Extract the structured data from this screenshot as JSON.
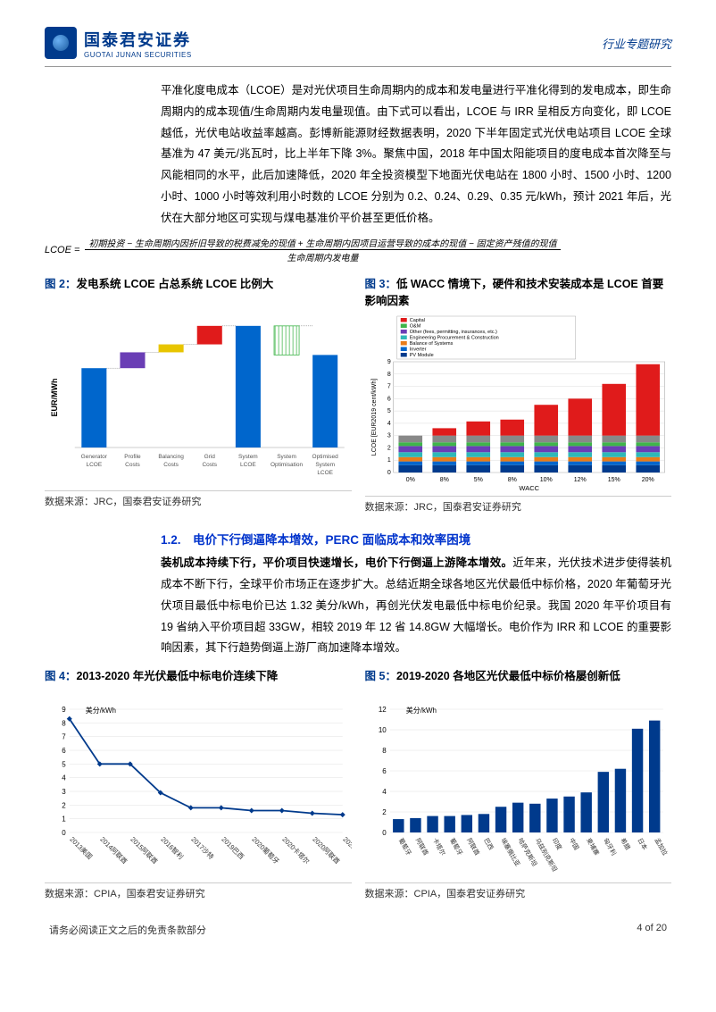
{
  "header": {
    "logo_cn": "国泰君安证券",
    "logo_en": "GUOTAI JUNAN SECURITIES",
    "doc_type": "行业专题研究"
  },
  "para1": "平准化度电成本（LCOE）是对光伏项目生命周期内的成本和发电量进行平准化得到的发电成本，即生命周期内的成本现值/生命周期内发电量现值。由下式可以看出，LCOE 与 IRR 呈相反方向变化，即 LCOE 越低，光伏电站收益率越高。彭博新能源财经数据表明，2020 下半年固定式光伏电站项目 LCOE 全球基准为 47 美元/兆瓦时，比上半年下降 3%。聚焦中国，2018 年中国太阳能项目的度电成本首次降至与风能相同的水平，此后加速降低，2020 年全投资模型下地面光伏电站在 1800 小时、1500 小时、1200 小时、1000 小时等效利用小时数的 LCOE 分别为 0.2、0.24、0.29、0.35 元/kWh，预计 2021 年后，光伏在大部分地区可实现与煤电基准价平价甚至更低价格。",
  "formula": {
    "lhs": "LCOE =",
    "num": "初期投资 − 生命周期内因折旧导致的税费减免的现值 + 生命周期内因项目运营导致的成本的现值 − 固定资产残值的现值",
    "den": "生命周期内发电量"
  },
  "fig2": {
    "prefix": "图 2：",
    "title": "发电系统 LCOE 占总系统 LCOE 比例大",
    "ylabel": "EUR/MWh",
    "categories": [
      "Generator LCOE",
      "Profile Costs",
      "Balancing Costs",
      "Grid Costs",
      "System LCOE",
      "System Optimisation",
      "Optimised System LCOE"
    ],
    "bars": [
      {
        "y0": 0,
        "y1": 60,
        "color": "#0066cc"
      },
      {
        "y0": 60,
        "y1": 72,
        "color": "#6a3eb5"
      },
      {
        "y0": 72,
        "y1": 78,
        "color": "#e8c500"
      },
      {
        "y0": 78,
        "y1": 92,
        "color": "#e01b1b"
      },
      {
        "y0": 0,
        "y1": 92,
        "color": "#0066cc"
      },
      {
        "y0": 70,
        "y1": 92,
        "color": "#3fb54a",
        "hatch": true
      },
      {
        "y0": 0,
        "y1": 70,
        "color": "#0066cc"
      }
    ],
    "ymax": 100,
    "source": "数据来源：JRC，国泰君安证券研究"
  },
  "fig3": {
    "prefix": "图 3：",
    "title": "低 WACC 情境下，硬件和技术安装成本是 LCOE 首要影响因素",
    "ylabel": "LCOE [EUR2019 cent/kWh]",
    "xlabel": "WACC",
    "categories": [
      "0%",
      "8%",
      "5%",
      "8%",
      "10%",
      "12%",
      "15%",
      "20%"
    ],
    "legend": [
      {
        "label": "Capital",
        "color": "#e01b1b"
      },
      {
        "label": "O&M",
        "color": "#3fb54a"
      },
      {
        "label": "Other (fees, permitting, insurances, etc.)",
        "color": "#6a3eb5"
      },
      {
        "label": "Engineering Procurement & Construction",
        "color": "#2fb8b8"
      },
      {
        "label": "Balance of Systems",
        "color": "#e87c1a"
      },
      {
        "label": "Inverter",
        "color": "#0066cc"
      },
      {
        "label": "PV Module",
        "color": "#003a8c"
      }
    ],
    "stacks": [
      [
        0.6,
        0.3,
        0.35,
        0.4,
        0.5,
        0.3,
        0.55,
        0.0
      ],
      [
        0.6,
        0.3,
        0.35,
        0.4,
        0.5,
        0.3,
        0.55,
        0.6
      ],
      [
        0.6,
        0.3,
        0.35,
        0.4,
        0.5,
        0.3,
        0.55,
        1.15
      ],
      [
        0.6,
        0.3,
        0.35,
        0.4,
        0.5,
        0.3,
        0.55,
        1.3
      ],
      [
        0.6,
        0.3,
        0.35,
        0.4,
        0.5,
        0.3,
        0.55,
        2.5
      ],
      [
        0.6,
        0.3,
        0.35,
        0.4,
        0.5,
        0.3,
        0.55,
        3.0
      ],
      [
        0.6,
        0.3,
        0.35,
        0.4,
        0.5,
        0.3,
        0.55,
        4.2
      ],
      [
        0.6,
        0.3,
        0.35,
        0.4,
        0.5,
        0.3,
        0.55,
        5.8
      ]
    ],
    "stack_colors": [
      "#003a8c",
      "#0066cc",
      "#e87c1a",
      "#2fb8b8",
      "#6a3eb5",
      "#3fb54a",
      "#888",
      "#e01b1b"
    ],
    "yticks": [
      0,
      1,
      2,
      3,
      4,
      5,
      6,
      7,
      8,
      9
    ],
    "ymax": 9,
    "source": "数据来源：JRC，国泰君安证券研究"
  },
  "section12": "1.2.　电价下行倒逼降本增效，PERC 面临成本和效率困境",
  "para2_bold": "装机成本持续下行，平价项目快速增长，电价下行倒逼上游降本增效。",
  "para2": "近年来，光伏技术进步使得装机成本不断下行，全球平价市场正在逐步扩大。总结近期全球各地区光伏最低中标价格，2020 年葡萄牙光伏项目最低中标电价已达 1.32 美分/kWh，再创光伏发电最低中标电价纪录。我国 2020 年平价项目有 19 省纳入平价项目超 33GW，相较 2019 年 12 省 14.8GW 大幅增长。电价作为 IRR 和 LCOE 的重要影响因素，其下行趋势倒逼上游厂商加速降本增效。",
  "fig4": {
    "prefix": "图 4：",
    "title": "2013-2020 年光伏最低中标电价连续下降",
    "ylabel": "美分/kWh",
    "yticks": [
      0,
      1,
      2,
      3,
      4,
      5,
      6,
      7,
      8,
      9
    ],
    "ymax": 9,
    "categories": [
      "2013美国",
      "2014阿联酋",
      "2015阿联酋",
      "2016智利",
      "2017沙特",
      "2019巴西",
      "2020葡萄牙",
      "2020卡塔尔",
      "2020阿联酋",
      "2020葡萄牙"
    ],
    "values": [
      8.3,
      5.0,
      5.0,
      2.9,
      1.8,
      1.8,
      1.6,
      1.6,
      1.4,
      1.3
    ],
    "line_color": "#003a8c",
    "marker_color": "#003a8c",
    "source": "数据来源：CPIA，国泰君安证券研究"
  },
  "fig5": {
    "prefix": "图 5：",
    "title": "2019-2020 各地区光伏最低中标价格屡创新低",
    "ylabel": "美分/kWh",
    "yticks": [
      0,
      2,
      4,
      6,
      8,
      10,
      12
    ],
    "ymax": 12,
    "categories": [
      "葡萄牙",
      "阿联酋",
      "卡塔尔",
      "葡萄牙",
      "阿联酋",
      "巴西",
      "埃塞俄比亚",
      "哈萨克斯坦",
      "乌兹别克斯坦",
      "印度",
      "中国",
      "柬埔寨",
      "匈牙利",
      "希腊",
      "日本",
      "孟加拉"
    ],
    "values": [
      1.3,
      1.4,
      1.6,
      1.6,
      1.7,
      1.8,
      2.5,
      2.9,
      2.8,
      3.3,
      3.5,
      3.9,
      5.9,
      6.2,
      10.1,
      10.9
    ],
    "bar_color": "#003a8c",
    "source": "数据来源：CPIA，国泰君安证券研究"
  },
  "footer": {
    "disclaimer": "请务必阅读正文之后的免责条款部分",
    "page": "4 of 20"
  }
}
